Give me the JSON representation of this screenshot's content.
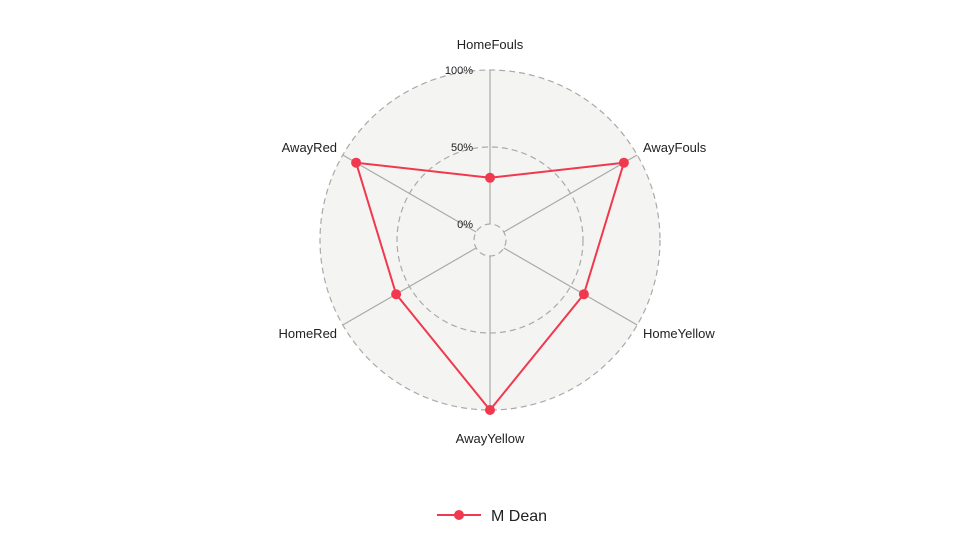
{
  "chart_data": {
    "type": "radar",
    "axes": [
      "HomeFouls",
      "AwayFouls",
      "HomeYellow",
      "AwayYellow",
      "HomeRed",
      "AwayRed"
    ],
    "ticks": [
      "0%",
      "50%",
      "100%"
    ],
    "range": [
      0,
      100
    ],
    "series": [
      {
        "name": "M Dean",
        "color": "#f0394e",
        "values": [
          30,
          90,
          60,
          100,
          60,
          90
        ]
      }
    ],
    "legend_position": "bottom-center",
    "background_fill": "#f4f4f2",
    "grid_color": "#aaaaaa"
  }
}
